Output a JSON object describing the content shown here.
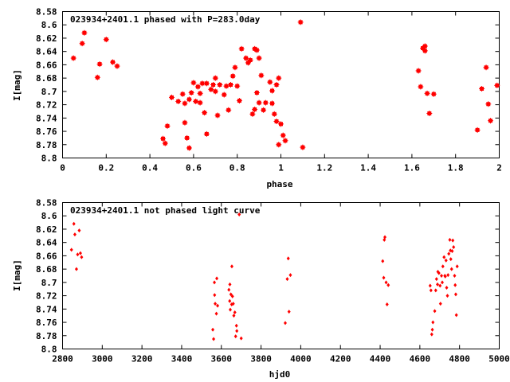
{
  "chart_data": [
    {
      "type": "scatter",
      "title": "023934+2401.1 phased with P=283.0day",
      "xlabel": "phase",
      "ylabel": "I[mag]",
      "xlim": [
        0,
        2
      ],
      "ylim": [
        8.8,
        8.58
      ],
      "y_reversed": true,
      "xticks": [
        "0",
        "0.2",
        "0.4",
        "0.6",
        "0.8",
        "1",
        "1.2",
        "1.4",
        "1.6",
        "1.8",
        "2"
      ],
      "yticks": [
        "8.58",
        "8.6",
        "8.62",
        "8.64",
        "8.66",
        "8.68",
        "8.7",
        "8.72",
        "8.74",
        "8.76",
        "8.78",
        "8.8"
      ],
      "grid": false,
      "marker_color": "#ff0000",
      "marker": "star",
      "series": [
        {
          "points": [
            [
              0.05,
              8.65
            ],
            [
              0.09,
              8.628
            ],
            [
              0.1,
              8.612
            ],
            [
              0.16,
              8.679
            ],
            [
              0.17,
              8.659
            ],
            [
              0.2,
              8.622
            ],
            [
              0.23,
              8.656
            ],
            [
              0.25,
              8.662
            ],
            [
              0.46,
              8.771
            ],
            [
              0.47,
              8.778
            ],
            [
              0.48,
              8.752
            ],
            [
              0.5,
              8.709
            ],
            [
              0.53,
              8.715
            ],
            [
              0.55,
              8.704
            ],
            [
              0.56,
              8.718
            ],
            [
              0.56,
              8.747
            ],
            [
              0.57,
              8.77
            ],
            [
              0.58,
              8.785
            ],
            [
              0.58,
              8.712
            ],
            [
              0.59,
              8.702
            ],
            [
              0.6,
              8.687
            ],
            [
              0.61,
              8.715
            ],
            [
              0.62,
              8.693
            ],
            [
              0.63,
              8.703
            ],
            [
              0.63,
              8.717
            ],
            [
              0.64,
              8.688
            ],
            [
              0.65,
              8.732
            ],
            [
              0.66,
              8.764
            ],
            [
              0.66,
              8.688
            ],
            [
              0.68,
              8.697
            ],
            [
              0.69,
              8.69
            ],
            [
              0.7,
              8.68
            ],
            [
              0.7,
              8.7
            ],
            [
              0.71,
              8.736
            ],
            [
              0.72,
              8.69
            ],
            [
              0.74,
              8.705
            ],
            [
              0.75,
              8.692
            ],
            [
              0.76,
              8.728
            ],
            [
              0.77,
              8.69
            ],
            [
              0.78,
              8.677
            ],
            [
              0.79,
              8.664
            ],
            [
              0.8,
              8.692
            ],
            [
              0.81,
              8.714
            ],
            [
              0.82,
              8.636
            ],
            [
              0.84,
              8.65
            ],
            [
              0.85,
              8.657
            ],
            [
              0.86,
              8.653
            ],
            [
              0.87,
              8.734
            ],
            [
              0.88,
              8.727
            ],
            [
              0.88,
              8.636
            ],
            [
              0.89,
              8.638
            ],
            [
              0.89,
              8.702
            ],
            [
              0.9,
              8.717
            ],
            [
              0.9,
              8.65
            ],
            [
              0.91,
              8.676
            ],
            [
              0.92,
              8.728
            ],
            [
              0.93,
              8.717
            ],
            [
              0.95,
              8.686
            ],
            [
              0.96,
              8.699
            ],
            [
              0.96,
              8.718
            ],
            [
              0.97,
              8.734
            ],
            [
              0.98,
              8.745
            ],
            [
              0.98,
              8.69
            ],
            [
              0.99,
              8.68
            ],
            [
              0.99,
              8.78
            ],
            [
              1.0,
              8.749
            ],
            [
              1.01,
              8.766
            ],
            [
              1.02,
              8.774
            ],
            [
              1.09,
              8.596
            ],
            [
              1.1,
              8.784
            ],
            [
              1.63,
              8.669
            ],
            [
              1.64,
              8.693
            ],
            [
              1.65,
              8.635
            ],
            [
              1.66,
              8.632
            ],
            [
              1.66,
              8.639
            ],
            [
              1.67,
              8.703
            ],
            [
              1.68,
              8.733
            ],
            [
              1.7,
              8.704
            ],
            [
              1.9,
              8.758
            ],
            [
              1.92,
              8.696
            ],
            [
              1.94,
              8.664
            ],
            [
              1.95,
              8.719
            ],
            [
              1.96,
              8.744
            ],
            [
              1.99,
              8.691
            ]
          ]
        }
      ]
    },
    {
      "type": "scatter",
      "title": "023934+2401.1 not phased light curve",
      "xlabel": "hjd0",
      "ylabel": "I[mag]",
      "xlim": [
        2800,
        5000
      ],
      "ylim": [
        8.8,
        8.58
      ],
      "y_reversed": true,
      "xticks": [
        "2800",
        "3000",
        "3200",
        "3400",
        "3600",
        "3800",
        "4000",
        "4200",
        "4400",
        "4600",
        "4800",
        "5000"
      ],
      "yticks": [
        "8.58",
        "8.6",
        "8.62",
        "8.64",
        "8.66",
        "8.68",
        "8.7",
        "8.72",
        "8.74",
        "8.76",
        "8.78",
        "8.8"
      ],
      "grid": false,
      "marker_color": "#ff0000",
      "marker": "diamond",
      "series": [
        {
          "points": [
            [
              2845,
              8.651
            ],
            [
              2857,
              8.612
            ],
            [
              2862,
              8.628
            ],
            [
              2870,
              8.68
            ],
            [
              2876,
              8.658
            ],
            [
              2884,
              8.622
            ],
            [
              2890,
              8.656
            ],
            [
              2896,
              8.662
            ],
            [
              3557,
              8.771
            ],
            [
              3561,
              8.785
            ],
            [
              3565,
              8.7
            ],
            [
              3566,
              8.719
            ],
            [
              3569,
              8.732
            ],
            [
              3575,
              8.747
            ],
            [
              3577,
              8.694
            ],
            [
              3581,
              8.735
            ],
            [
              3638,
              8.711
            ],
            [
              3642,
              8.728
            ],
            [
              3643,
              8.703
            ],
            [
              3645,
              8.741
            ],
            [
              3648,
              8.718
            ],
            [
              3652,
              8.733
            ],
            [
              3653,
              8.676
            ],
            [
              3656,
              8.721
            ],
            [
              3660,
              8.732
            ],
            [
              3663,
              8.75
            ],
            [
              3668,
              8.745
            ],
            [
              3672,
              8.781
            ],
            [
              3676,
              8.765
            ],
            [
              3678,
              8.773
            ],
            [
              3690,
              8.598
            ],
            [
              3700,
              8.784
            ],
            [
              3922,
              8.761
            ],
            [
              3932,
              8.695
            ],
            [
              3937,
              8.664
            ],
            [
              3941,
              8.744
            ],
            [
              3948,
              8.689
            ],
            [
              4413,
              8.668
            ],
            [
              4418,
              8.693
            ],
            [
              4421,
              8.636
            ],
            [
              4424,
              8.632
            ],
            [
              4430,
              8.7
            ],
            [
              4435,
              8.733
            ],
            [
              4441,
              8.704
            ],
            [
              4652,
              8.705
            ],
            [
              4656,
              8.712
            ],
            [
              4660,
              8.778
            ],
            [
              4663,
              8.771
            ],
            [
              4666,
              8.76
            ],
            [
              4675,
              8.743
            ],
            [
              4680,
              8.712
            ],
            [
              4684,
              8.695
            ],
            [
              4689,
              8.703
            ],
            [
              4691,
              8.684
            ],
            [
              4696,
              8.686
            ],
            [
              4702,
              8.705
            ],
            [
              4704,
              8.732
            ],
            [
              4709,
              8.69
            ],
            [
              4713,
              8.7
            ],
            [
              4716,
              8.676
            ],
            [
              4722,
              8.662
            ],
            [
              4726,
              8.69
            ],
            [
              4728,
              8.691
            ],
            [
              4732,
              8.667
            ],
            [
              4735,
              8.708
            ],
            [
              4739,
              8.72
            ],
            [
              4742,
              8.689
            ],
            [
              4746,
              8.657
            ],
            [
              4751,
              8.636
            ],
            [
              4754,
              8.652
            ],
            [
              4756,
              8.665
            ],
            [
              4760,
              8.68
            ],
            [
              4763,
              8.653
            ],
            [
              4766,
              8.637
            ],
            [
              4770,
              8.647
            ],
            [
              4775,
              8.69
            ],
            [
              4778,
              8.704
            ],
            [
              4781,
              8.718
            ],
            [
              4784,
              8.749
            ],
            [
              4788,
              8.676
            ]
          ]
        }
      ]
    }
  ]
}
